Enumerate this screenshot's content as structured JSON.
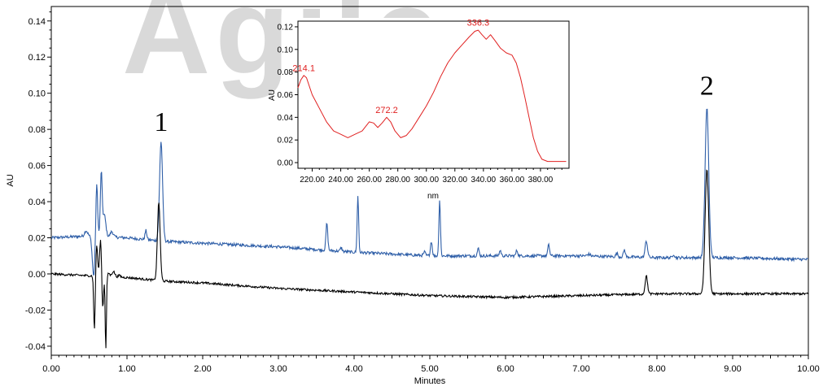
{
  "watermark": "Agile",
  "colors": {
    "trace_blue": "#2f5fa8",
    "trace_black": "#000000",
    "spectrum_red": "#e02020",
    "watermark": "#d9d9d9"
  },
  "chart_data": [
    {
      "type": "line",
      "title": "",
      "xlabel": "Minutes",
      "ylabel": "AU",
      "xlim": [
        0,
        10
      ],
      "ylim": [
        -0.045,
        0.148
      ],
      "x_ticks": [
        0,
        1,
        2,
        3,
        4,
        5,
        6,
        7,
        8,
        9,
        10
      ],
      "x_tick_labels": [
        "0.00",
        "1.00",
        "2.00",
        "3.00",
        "4.00",
        "5.00",
        "6.00",
        "7.00",
        "8.00",
        "9.00",
        "10.00"
      ],
      "y_ticks": [
        -0.04,
        -0.02,
        0,
        0.02,
        0.04,
        0.06,
        0.08,
        0.1,
        0.12,
        0.14
      ],
      "y_tick_labels": [
        "-0.04",
        "-0.02",
        "0.00",
        "0.02",
        "0.04",
        "0.06",
        "0.08",
        "0.10",
        "0.12",
        "0.14"
      ],
      "grid": false,
      "peak_labels": [
        {
          "text": "1",
          "x": 1.45,
          "y": 0.077
        },
        {
          "text": "2",
          "x": 8.66,
          "y": 0.097
        }
      ],
      "series": [
        {
          "color": "#2f5fa8",
          "baseline": [
            [
              0,
              0.02
            ],
            [
              0.5,
              0.021
            ],
            [
              1.0,
              0.02
            ],
            [
              1.5,
              0.018
            ],
            [
              2.0,
              0.017
            ],
            [
              3.0,
              0.015
            ],
            [
              4.0,
              0.012
            ],
            [
              5.0,
              0.01
            ],
            [
              6.0,
              0.01
            ],
            [
              7.0,
              0.01
            ],
            [
              8.0,
              0.009
            ],
            [
              9.0,
              0.009
            ],
            [
              10.0,
              0.008
            ]
          ],
          "noise": 0.0008,
          "peaks": [
            [
              0.46,
              0.003,
              0.02
            ],
            [
              0.56,
              -0.022,
              0.018
            ],
            [
              0.6,
              0.03,
              0.012
            ],
            [
              0.66,
              0.035,
              0.012
            ],
            [
              0.7,
              0.012,
              0.02
            ],
            [
              0.8,
              0.003,
              0.02
            ],
            [
              1.25,
              0.005,
              0.012
            ],
            [
              1.45,
              0.055,
              0.02
            ],
            [
              3.64,
              0.015,
              0.012
            ],
            [
              3.83,
              0.002,
              0.012
            ],
            [
              4.05,
              0.031,
              0.01
            ],
            [
              4.93,
              0.002,
              0.012
            ],
            [
              5.02,
              0.008,
              0.012
            ],
            [
              5.13,
              0.031,
              0.01
            ],
            [
              5.64,
              0.004,
              0.012
            ],
            [
              5.93,
              0.003,
              0.012
            ],
            [
              6.15,
              0.003,
              0.012
            ],
            [
              6.57,
              0.006,
              0.012
            ],
            [
              7.1,
              0.001,
              0.02
            ],
            [
              7.47,
              0.002,
              0.012
            ],
            [
              7.57,
              0.004,
              0.012
            ],
            [
              7.86,
              0.009,
              0.016
            ],
            [
              8.22,
              0.002,
              0.012
            ],
            [
              8.66,
              0.083,
              0.024
            ]
          ]
        },
        {
          "color": "#000000",
          "baseline": [
            [
              0,
              0.0
            ],
            [
              0.5,
              -0.001
            ],
            [
              1.0,
              -0.002
            ],
            [
              1.5,
              -0.004
            ],
            [
              2.0,
              -0.005
            ],
            [
              3.0,
              -0.008
            ],
            [
              4.0,
              -0.01
            ],
            [
              5.0,
              -0.012
            ],
            [
              6.0,
              -0.013
            ],
            [
              7.0,
              -0.012
            ],
            [
              8.0,
              -0.011
            ],
            [
              9.0,
              -0.011
            ],
            [
              10.0,
              -0.011
            ]
          ],
          "noise": 0.0006,
          "peaks": [
            [
              0.57,
              -0.03,
              0.01
            ],
            [
              0.6,
              0.017,
              0.012
            ],
            [
              0.65,
              0.02,
              0.012
            ],
            [
              0.68,
              -0.018,
              0.01
            ],
            [
              0.72,
              -0.04,
              0.008
            ],
            [
              0.76,
              0.002,
              0.012
            ],
            [
              0.82,
              0.003,
              0.02
            ],
            [
              0.9,
              0.001,
              0.015
            ],
            [
              1.42,
              0.043,
              0.018
            ],
            [
              7.86,
              0.01,
              0.016
            ],
            [
              8.66,
              0.069,
              0.024
            ]
          ]
        }
      ]
    },
    {
      "type": "line",
      "title": "",
      "xlabel": "nm",
      "ylabel": "AU",
      "xlim": [
        210,
        400
      ],
      "ylim": [
        -0.005,
        0.125
      ],
      "x_ticks": [
        220,
        240,
        260,
        280,
        300,
        320,
        340,
        360,
        380
      ],
      "x_tick_labels": [
        "220.00",
        "240.00",
        "260.00",
        "280.00",
        "300.00",
        "320.00",
        "340.00",
        "360.00",
        "380.00"
      ],
      "y_ticks": [
        0,
        0.02,
        0.04,
        0.06,
        0.08,
        0.1,
        0.12
      ],
      "y_tick_labels": [
        "0.00",
        "0.02",
        "0.04",
        "0.06",
        "0.08",
        "0.10",
        "0.12"
      ],
      "grid": false,
      "annotations": [
        {
          "text": "214.1",
          "x": 214.1,
          "y": 0.078
        },
        {
          "text": "272.2",
          "x": 272.2,
          "y": 0.041
        },
        {
          "text": "336.3",
          "x": 336.3,
          "y": 0.118
        }
      ],
      "series": [
        {
          "color": "#e02020",
          "points": [
            [
              210,
              0.066
            ],
            [
              212,
              0.073
            ],
            [
              214.1,
              0.077
            ],
            [
              216,
              0.075
            ],
            [
              220,
              0.06
            ],
            [
              225,
              0.048
            ],
            [
              230,
              0.036
            ],
            [
              235,
              0.028
            ],
            [
              240,
              0.025
            ],
            [
              245,
              0.022
            ],
            [
              250,
              0.025
            ],
            [
              255,
              0.028
            ],
            [
              260,
              0.036
            ],
            [
              263,
              0.035
            ],
            [
              266,
              0.031
            ],
            [
              269,
              0.035
            ],
            [
              272.2,
              0.04
            ],
            [
              275,
              0.036
            ],
            [
              278,
              0.028
            ],
            [
              282,
              0.022
            ],
            [
              286,
              0.024
            ],
            [
              290,
              0.03
            ],
            [
              295,
              0.04
            ],
            [
              300,
              0.05
            ],
            [
              305,
              0.062
            ],
            [
              310,
              0.076
            ],
            [
              315,
              0.088
            ],
            [
              320,
              0.097
            ],
            [
              325,
              0.104
            ],
            [
              330,
              0.111
            ],
            [
              334,
              0.116
            ],
            [
              336.3,
              0.117
            ],
            [
              339,
              0.113
            ],
            [
              342,
              0.109
            ],
            [
              345,
              0.113
            ],
            [
              348,
              0.108
            ],
            [
              352,
              0.101
            ],
            [
              356,
              0.097
            ],
            [
              360,
              0.095
            ],
            [
              363,
              0.088
            ],
            [
              366,
              0.075
            ],
            [
              369,
              0.058
            ],
            [
              372,
              0.04
            ],
            [
              375,
              0.022
            ],
            [
              378,
              0.01
            ],
            [
              381,
              0.003
            ],
            [
              385,
              0.001
            ],
            [
              390,
              0.001
            ],
            [
              395,
              0.001
            ],
            [
              398,
              0.001
            ]
          ]
        }
      ]
    }
  ]
}
